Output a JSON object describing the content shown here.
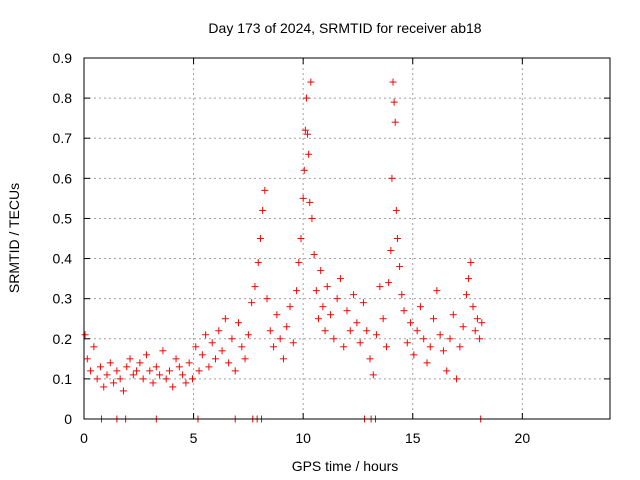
{
  "chart_data": {
    "type": "scatter",
    "title": "Day 173 of 2024, SRMTID for receiver ab18",
    "xlabel": "GPS time / hours",
    "ylabel": "SRMTID / TECUs",
    "xlim": [
      0,
      24
    ],
    "ylim": [
      0,
      0.9
    ],
    "xticks": [
      0,
      5,
      10,
      15,
      20
    ],
    "yticks": [
      0,
      0.1,
      0.2,
      0.3,
      0.4,
      0.5,
      0.6,
      0.7,
      0.8,
      0.9
    ],
    "grid": true,
    "marker": "+",
    "color": "#ff0000",
    "series": [
      {
        "name": "SRMTID",
        "x": [
          0.05,
          0.15,
          0.3,
          0.45,
          0.6,
          0.75,
          0.9,
          1.05,
          1.2,
          1.35,
          1.5,
          1.65,
          1.8,
          1.95,
          2.1,
          2.25,
          2.4,
          2.55,
          2.7,
          2.85,
          3.0,
          3.15,
          3.3,
          3.45,
          3.6,
          3.75,
          3.9,
          4.05,
          4.2,
          4.35,
          4.5,
          4.65,
          4.8,
          4.95,
          5.1,
          5.25,
          5.4,
          5.55,
          5.7,
          5.85,
          6.0,
          6.15,
          6.3,
          6.45,
          6.6,
          6.75,
          6.9,
          7.05,
          7.2,
          7.35,
          7.5,
          7.65,
          7.8,
          7.95,
          8.05,
          8.15,
          8.25,
          8.35,
          8.5,
          8.65,
          8.8,
          8.95,
          9.1,
          9.25,
          9.4,
          9.55,
          9.7,
          9.8,
          9.9,
          10.0,
          10.05,
          10.1,
          10.15,
          10.2,
          10.25,
          10.3,
          10.35,
          10.4,
          10.5,
          10.6,
          10.7,
          10.8,
          10.9,
          11.0,
          11.1,
          11.25,
          11.4,
          11.55,
          11.7,
          11.85,
          12.0,
          12.15,
          12.3,
          12.45,
          12.6,
          12.75,
          12.9,
          13.05,
          13.2,
          13.35,
          13.5,
          13.65,
          13.8,
          13.9,
          14.0,
          14.05,
          14.1,
          14.15,
          14.2,
          14.25,
          14.3,
          14.4,
          14.5,
          14.6,
          14.75,
          14.9,
          15.05,
          15.2,
          15.35,
          15.5,
          15.65,
          15.8,
          15.95,
          16.1,
          16.25,
          16.4,
          16.55,
          16.7,
          16.85,
          17.0,
          17.15,
          17.3,
          17.45,
          17.55,
          17.65,
          17.75,
          17.85,
          17.95,
          18.05,
          18.15,
          0.8,
          1.5,
          1.9,
          3.3,
          5.2,
          6.9,
          7.7,
          7.9,
          8.1,
          12.8,
          13.1,
          13.3,
          18.1
        ],
        "y": [
          0.21,
          0.15,
          0.12,
          0.18,
          0.1,
          0.13,
          0.08,
          0.11,
          0.14,
          0.09,
          0.12,
          0.1,
          0.07,
          0.13,
          0.15,
          0.11,
          0.12,
          0.14,
          0.1,
          0.16,
          0.12,
          0.09,
          0.13,
          0.11,
          0.17,
          0.1,
          0.12,
          0.08,
          0.15,
          0.13,
          0.11,
          0.09,
          0.14,
          0.1,
          0.18,
          0.12,
          0.16,
          0.21,
          0.13,
          0.19,
          0.15,
          0.22,
          0.17,
          0.25,
          0.14,
          0.2,
          0.12,
          0.24,
          0.18,
          0.15,
          0.21,
          0.29,
          0.33,
          0.39,
          0.45,
          0.52,
          0.57,
          0.3,
          0.22,
          0.18,
          0.26,
          0.2,
          0.15,
          0.23,
          0.28,
          0.19,
          0.32,
          0.39,
          0.45,
          0.55,
          0.62,
          0.72,
          0.8,
          0.71,
          0.66,
          0.54,
          0.84,
          0.5,
          0.41,
          0.32,
          0.25,
          0.37,
          0.28,
          0.22,
          0.33,
          0.26,
          0.2,
          0.3,
          0.35,
          0.18,
          0.27,
          0.22,
          0.31,
          0.24,
          0.19,
          0.29,
          0.22,
          0.15,
          0.11,
          0.21,
          0.33,
          0.25,
          0.18,
          0.34,
          0.42,
          0.6,
          0.84,
          0.79,
          0.74,
          0.52,
          0.45,
          0.38,
          0.31,
          0.27,
          0.19,
          0.24,
          0.16,
          0.22,
          0.28,
          0.2,
          0.14,
          0.18,
          0.25,
          0.32,
          0.21,
          0.17,
          0.12,
          0.2,
          0.26,
          0.1,
          0.18,
          0.23,
          0.31,
          0.35,
          0.39,
          0.28,
          0.22,
          0.25,
          0.2,
          0.24,
          0.0,
          0.0,
          0.0,
          0.0,
          0.0,
          0.0,
          0.0,
          0.0,
          0.0,
          0.0,
          0.0,
          0.0,
          0.0
        ]
      }
    ]
  }
}
